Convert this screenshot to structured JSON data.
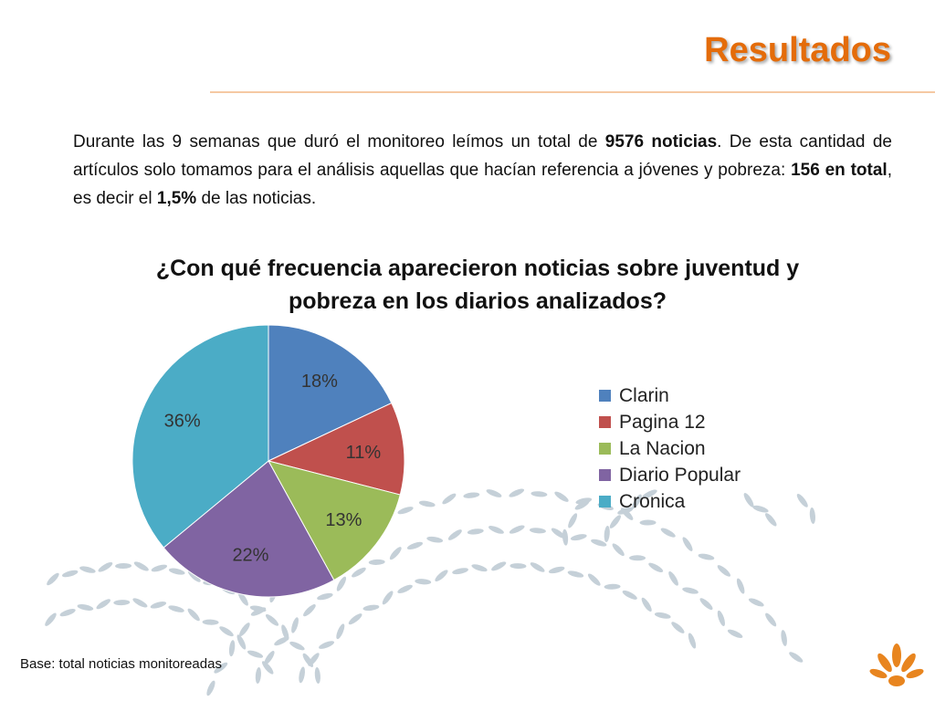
{
  "slide": {
    "title": "Resultados",
    "intro": {
      "p1": "Durante las 9 semanas que duró el monitoreo leímos un total de ",
      "b1": "9576 noticias",
      "p2": ". De esta cantidad de artículos solo tomamos para el análisis aquellas que hacían referencia a jóvenes y pobreza: ",
      "b2": "156 en total",
      "p3": ", es decir el ",
      "b3": "1,5%",
      "p4": " de las noticias."
    },
    "footnote": "Base: total noticias monitoreadas",
    "accent_color": "#e46c0a"
  },
  "chart_data": {
    "type": "pie",
    "title": "¿Con qué frecuencia aparecieron noticias sobre juventud y pobreza en los diarios analizados?",
    "unit": "%",
    "legend_position": "right",
    "slices": [
      {
        "label": "Clarin",
        "value": 18,
        "display": "18%",
        "color": "#4f81bd"
      },
      {
        "label": "Pagina 12",
        "value": 11,
        "display": "11%",
        "color": "#c0504d"
      },
      {
        "label": "La Nacion",
        "value": 13,
        "display": "13%",
        "color": "#9bbb59"
      },
      {
        "label": "Diario Popular",
        "value": 22,
        "display": "22%",
        "color": "#8064a2"
      },
      {
        "label": "Cronica",
        "value": 36,
        "display": "36%",
        "color": "#4bacc6"
      }
    ]
  }
}
